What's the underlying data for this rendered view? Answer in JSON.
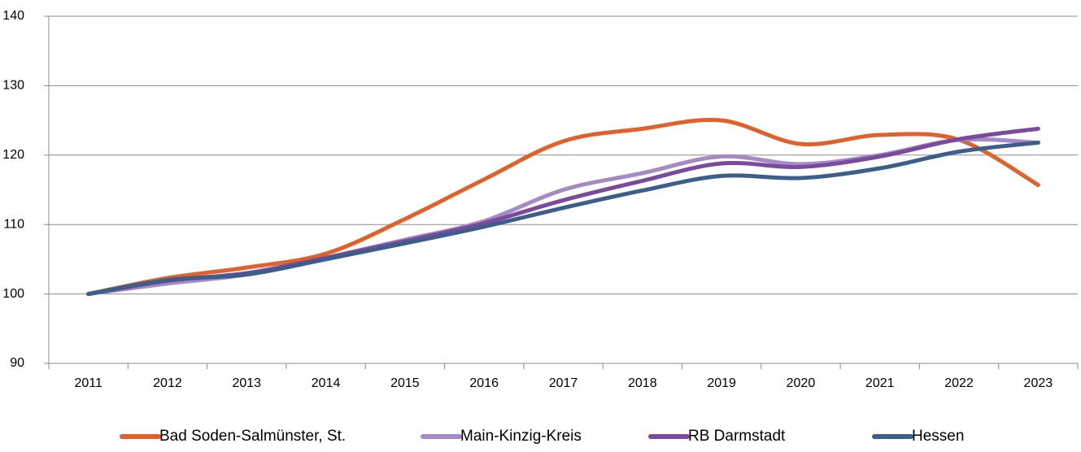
{
  "chart_data": {
    "type": "line",
    "categories": [
      "2011",
      "2012",
      "2013",
      "2014",
      "2015",
      "2016",
      "2017",
      "2018",
      "2019",
      "2020",
      "2021",
      "2022",
      "2023"
    ],
    "series": [
      {
        "name": "Bad Soden-Salmünster, St.",
        "color": "#e0622a",
        "values": [
          100,
          102.3,
          103.8,
          105.8,
          110.8,
          116.5,
          122,
          123.8,
          125,
          121.6,
          122.9,
          122.2,
          115.7
        ]
      },
      {
        "name": "Main-Kinzig-Kreis",
        "color": "#a58ac6",
        "values": [
          100,
          101.5,
          102.8,
          105.2,
          107.8,
          110.5,
          115,
          117.4,
          119.8,
          118.7,
          120,
          122.2,
          121.8
        ]
      },
      {
        "name": "RB Darmstadt",
        "color": "#7a4a9e",
        "values": [
          100,
          101.9,
          103,
          105.2,
          107.6,
          110.2,
          113.5,
          116.3,
          118.8,
          118.3,
          119.8,
          122.3,
          123.8
        ]
      },
      {
        "name": "Hessen",
        "color": "#3b5f8a",
        "values": [
          100,
          102,
          102.8,
          105,
          107.3,
          109.7,
          112.4,
          114.9,
          117,
          116.7,
          118.1,
          120.5,
          121.8
        ]
      }
    ],
    "ylim": [
      90,
      140
    ],
    "yticks": [
      90,
      100,
      110,
      120,
      130,
      140
    ],
    "grid": true,
    "legend": "bottom"
  }
}
